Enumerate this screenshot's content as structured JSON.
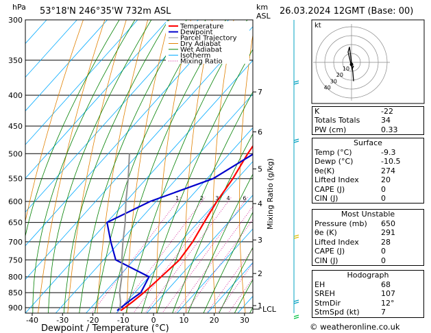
{
  "header": {
    "hpa_label": "hPa",
    "location": "53°18'N 246°35'W 732m ASL",
    "km_label": "km",
    "asl_label": "ASL",
    "datetime": "26.03.2024 12GMT (Base: 00)"
  },
  "chart_data": {
    "type": "line",
    "title": "53°18'N 246°35'W 732m ASL",
    "xlabel": "Dewpoint / Temperature (°C)",
    "ylabel": "hPa",
    "right_axis_label": "Mixing Ratio (g/kg)",
    "xlim": [
      -40,
      35
    ],
    "ylim": [
      900,
      300
    ],
    "log_p": true,
    "skew_deg_per_decade": 0,
    "x_ticks": [
      -40,
      -30,
      -20,
      -10,
      0,
      10,
      20,
      30
    ],
    "p_ticks": [
      300,
      350,
      400,
      450,
      500,
      550,
      600,
      650,
      700,
      750,
      800,
      850,
      900
    ],
    "km_ticks": [
      {
        "km": "1",
        "p": 893
      },
      {
        "km": "2",
        "p": 790
      },
      {
        "km": "3",
        "p": 695
      },
      {
        "km": "4",
        "p": 605
      },
      {
        "km": "5",
        "p": 530
      },
      {
        "km": "6",
        "p": 460
      },
      {
        "km": "7",
        "p": 395
      }
    ],
    "lcl_label": "LCL",
    "lcl_p": 905,
    "mixing_ratio_labels": [
      "1",
      "2",
      "3",
      "4",
      "6",
      "8",
      "10",
      "16",
      "20",
      "25"
    ],
    "mixing_ratio_values": [
      1,
      2,
      3,
      4,
      6,
      8,
      10,
      16,
      20,
      25
    ],
    "legend": [
      "Temperature",
      "Dewpoint",
      "Parcel Trajectory",
      "Dry Adiabat",
      "Wet Adiabat",
      "Isotherm",
      "Mixing Ratio"
    ],
    "legend_colors": [
      "#ff0000",
      "#0000cc",
      "#909090",
      "#e08000",
      "#008000",
      "#00aaff",
      "#cc0088"
    ],
    "series": [
      {
        "name": "Temperature",
        "color": "#ff0000",
        "points": [
          [
            -9.3,
            910
          ],
          [
            -8,
            880
          ],
          [
            -7,
            850
          ],
          [
            -6,
            800
          ],
          [
            -5,
            750
          ],
          [
            -6,
            700
          ],
          [
            -8,
            650
          ],
          [
            -10,
            600
          ],
          [
            -11.5,
            550
          ],
          [
            -14,
            500
          ],
          [
            -16,
            450
          ],
          [
            -19,
            400
          ],
          [
            -24,
            350
          ],
          [
            -30,
            300
          ]
        ]
      },
      {
        "name": "Dewpoint",
        "color": "#0000cc",
        "points": [
          [
            -10.5,
            910
          ],
          [
            -9,
            870
          ],
          [
            -8,
            850
          ],
          [
            -10,
            800
          ],
          [
            -26,
            750
          ],
          [
            -33,
            700
          ],
          [
            -40,
            650
          ],
          [
            -32,
            600
          ],
          [
            -18,
            550
          ],
          [
            -12,
            500
          ],
          [
            -16,
            450
          ],
          [
            -20,
            400
          ],
          [
            -25,
            350
          ],
          [
            -31,
            300
          ]
        ]
      },
      {
        "name": "Parcel Trajectory",
        "color": "#909090",
        "points": [
          [
            -9.6,
            910
          ],
          [
            -12,
            880
          ],
          [
            -15,
            850
          ],
          [
            -19,
            800
          ],
          [
            -24,
            750
          ],
          [
            -29,
            700
          ],
          [
            -34,
            650
          ],
          [
            -40,
            600
          ],
          [
            -46,
            550
          ],
          [
            -53,
            500
          ]
        ]
      }
    ]
  },
  "indices": {
    "k_label": "K",
    "k": "-22",
    "tt_label": "Totals Totals",
    "tt": "34",
    "pw_label": "PW (cm)",
    "pw": "0.33"
  },
  "surface": {
    "title": "Surface",
    "temp_label": "Temp (°C)",
    "temp": "-9.3",
    "dewp_label": "Dewp (°C)",
    "dewp": "-10.5",
    "thetae_label": "θe(K)",
    "thetae": "274",
    "li_label": "Lifted Index",
    "li": "20",
    "cape_label": "CAPE (J)",
    "cape": "0",
    "cin_label": "CIN (J)",
    "cin": "0"
  },
  "most_unstable": {
    "title": "Most Unstable",
    "pressure_label": "Pressure (mb)",
    "pressure": "650",
    "thetae_label": "θe (K)",
    "thetae": "291",
    "li_label": "Lifted Index",
    "li": "28",
    "cape_label": "CAPE (J)",
    "cape": "0",
    "cin_label": "CIN (J)",
    "cin": "0"
  },
  "hodograph_table": {
    "title": "Hodograph",
    "eh_label": "EH",
    "eh": "68",
    "sreh_label": "SREH",
    "sreh": "107",
    "stmdir_label": "StmDir",
    "stmdir": "12°",
    "stmspd_label": "StmSpd (kt)",
    "stmspd": "7"
  },
  "hodograph": {
    "unit_label": "kt",
    "ring_labels": [
      "10",
      "20",
      "30",
      "40"
    ],
    "trace": [
      [
        0.3,
        -0.2
      ],
      [
        0.1,
        -0.4
      ],
      [
        -0.2,
        0.1
      ],
      [
        -0.5,
        0.6
      ],
      [
        -0.3,
        0.9
      ],
      [
        0.2,
        -0.6
      ],
      [
        0.3,
        -1.1
      ]
    ]
  },
  "copyright": "© weatheronline.co.uk"
}
